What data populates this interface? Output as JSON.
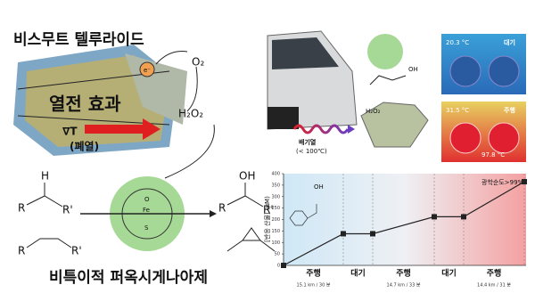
{
  "left_panel": {
    "title": "비스무트 텔루라이드",
    "effect": "열전 효과",
    "electron": "e⁻",
    "oxygen": "O₂",
    "peroxide": "H₂O₂",
    "gradient": "∇T",
    "waste_heat": "(폐열)",
    "iron": "Fe",
    "enzyme": "비특이적 퍼옥시게나아제",
    "atom_o": "O",
    "atom_s": "S",
    "substituent_r": "R",
    "substituent_r2": "R'",
    "hydrogen": "H",
    "hydroxyl": "OH"
  },
  "top_right_panel": {
    "exhaust_heat": "배기열",
    "temp_limit": "(< 100℃)",
    "peroxide": "H₂O₂",
    "idle_temp": "20.3 °C",
    "idle": "대기",
    "drive_temp": "31.5 °C",
    "drive": "주행",
    "hot_temp": "97.8 °C",
    "hydroxyl": "OH"
  },
  "chart_data": {
    "type": "line",
    "y_label": "[반응 산물] (μM)",
    "annotation": "광학순도>99%",
    "molecule_label": "OH",
    "categories": [
      null,
      null,
      null,
      null,
      null,
      null
    ],
    "values": [
      0,
      138,
      138,
      212,
      212,
      365
    ],
    "color": "#222222",
    "ylim": [
      0,
      400
    ],
    "yticks": [
      0,
      50,
      100,
      150,
      200,
      250,
      300,
      350,
      400
    ],
    "phases": [
      {
        "label": "주행",
        "detail": "15.1 km / 30 분"
      },
      {
        "label": "대기"
      },
      {
        "label": "주행",
        "detail": "14.7 km / 33 분"
      },
      {
        "label": "대기"
      },
      {
        "label": "주행",
        "detail": "14.4 km / 31 분"
      }
    ]
  }
}
